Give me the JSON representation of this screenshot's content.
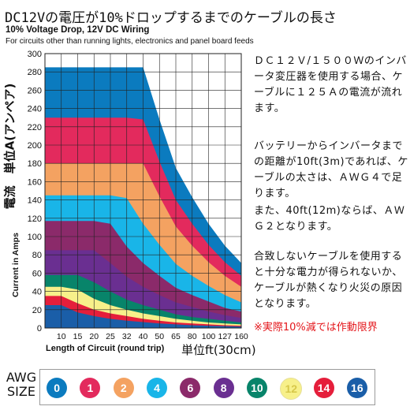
{
  "title": "DC12Vの電圧が10%ドロップするまでのケーブルの長さ",
  "subtitle": "10% Voltage Drop, 12V DC Wiring",
  "caption": "For circuits other than running lights, electronics and panel board feeds",
  "ylabel_en": "Current in Amps",
  "ylabel_jp": "電流　単位A(アンペア)",
  "xlabel_en": "Length of Circuit (round trip)",
  "xlabel_jp": "単位ft(30cm)",
  "notes": {
    "n1": "ＤＣ１２Ｖ/１５００Ｗのインバータ変圧器を使用する場合、ケーブルに１２５Ａの電流が流れます。",
    "n2": "バッテリーからインバータまでの距離が10ft(3m)であれば、ケーブルの太さは、ＡＷＧ４で足ります。",
    "n3": "また、40ft(12m)ならば、ＡＷＧ２となります。",
    "n4": "合致しないケーブルを使用すると十分な電力が得られないか、ケーブルが熱くなり火災の原因となります。",
    "n5": "※実際10%減では作動限界"
  },
  "awg_title": "AWG\nSIZE",
  "chart_data": {
    "type": "area",
    "x": [
      10,
      15,
      20,
      25,
      32,
      40,
      50,
      65,
      80,
      100,
      127,
      160
    ],
    "xlabel": "Length of Circuit (round trip)",
    "ylabel": "Current in Amps",
    "ylim": [
      0,
      300
    ],
    "yticks": [
      0,
      20,
      40,
      60,
      80,
      100,
      120,
      140,
      160,
      180,
      200,
      220,
      240,
      260,
      280,
      300
    ],
    "grid": true,
    "legend": "bottom",
    "series": [
      {
        "name": "0",
        "color": "#0b7bbf",
        "values": [
          285,
          285,
          285,
          285,
          285,
          285,
          228,
          175,
          143,
          114,
          90,
          71
        ]
      },
      {
        "name": "1",
        "color": "#e32a5d",
        "values": [
          230,
          230,
          230,
          230,
          230,
          228,
          182,
          140,
          114,
          91,
          72,
          57
        ]
      },
      {
        "name": "2",
        "color": "#f4a261",
        "values": [
          180,
          180,
          180,
          180,
          180,
          180,
          144,
          111,
          90,
          72,
          57,
          45
        ]
      },
      {
        "name": "4",
        "color": "#19b5e8",
        "values": [
          145,
          145,
          145,
          145,
          142,
          114,
          91,
          70,
          57,
          46,
          36,
          28
        ]
      },
      {
        "name": "6",
        "color": "#8b2a6a",
        "values": [
          117,
          117,
          117,
          114,
          89,
          71,
          57,
          44,
          36,
          29,
          22,
          18
        ]
      },
      {
        "name": "8",
        "color": "#6a2f91",
        "values": [
          85,
          85,
          85,
          71,
          56,
          45,
          36,
          28,
          23,
          18,
          14,
          11
        ]
      },
      {
        "name": "10",
        "color": "#08846a",
        "values": [
          58,
          58,
          50,
          40,
          31,
          25,
          20,
          15,
          12,
          10,
          8,
          6
        ]
      },
      {
        "name": "12",
        "color": "#f7f08a",
        "values": [
          45,
          42,
          32,
          25,
          20,
          16,
          13,
          10,
          8,
          6,
          5,
          4
        ]
      },
      {
        "name": "14",
        "color": "#e51e3b",
        "values": [
          35,
          27,
          20,
          16,
          13,
          10,
          8,
          6,
          5,
          4,
          3,
          2.5
        ]
      },
      {
        "name": "16",
        "color": "#1a5ea8",
        "values": [
          25,
          17,
          13,
          10,
          8,
          6.5,
          5,
          4,
          3,
          2.5,
          2,
          1.5
        ]
      }
    ]
  }
}
